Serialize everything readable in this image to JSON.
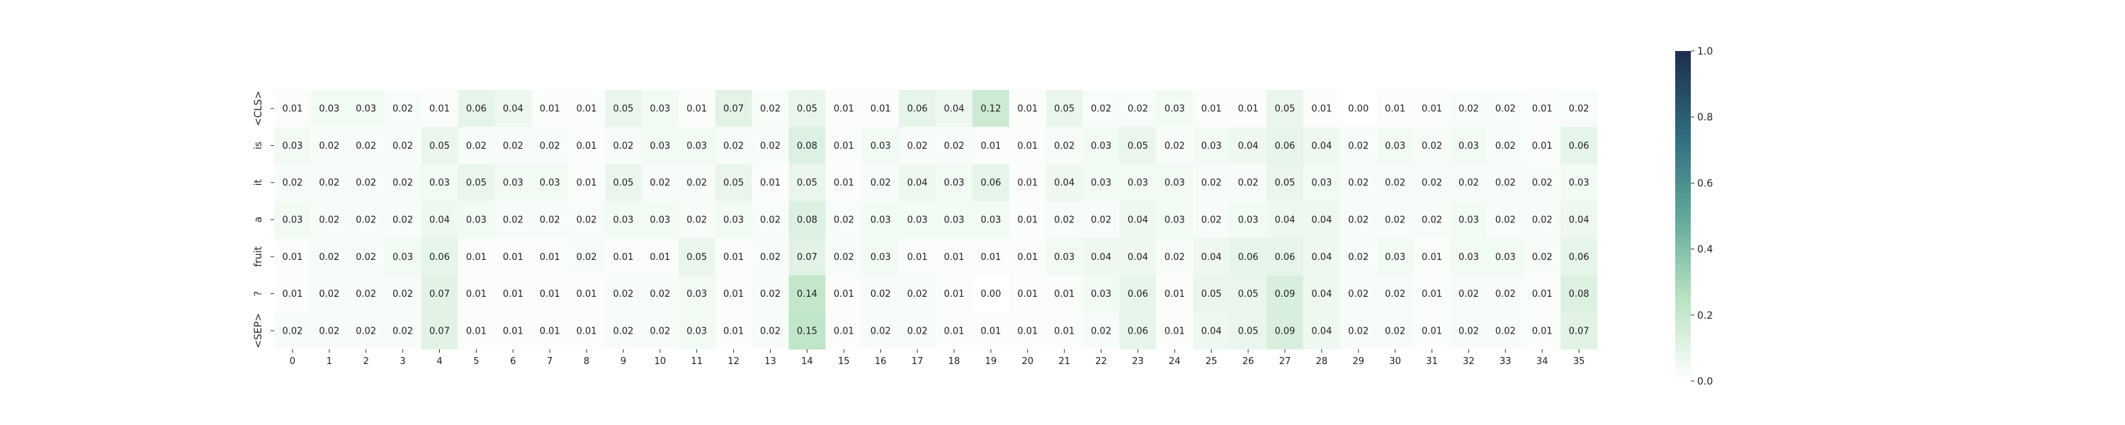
{
  "chart_data": {
    "type": "heatmap",
    "title": "",
    "xlabel": "",
    "ylabel": "",
    "x_categories": [
      "0",
      "1",
      "2",
      "3",
      "4",
      "5",
      "6",
      "7",
      "8",
      "9",
      "10",
      "11",
      "12",
      "13",
      "14",
      "15",
      "16",
      "17",
      "18",
      "19",
      "20",
      "21",
      "22",
      "23",
      "24",
      "25",
      "26",
      "27",
      "28",
      "29",
      "30",
      "31",
      "32",
      "33",
      "34",
      "35"
    ],
    "y_categories": [
      "<CLS>",
      "is",
      "it",
      "a",
      "fruit",
      "?",
      "<SEP>"
    ],
    "values": [
      [
        0.01,
        0.03,
        0.03,
        0.02,
        0.01,
        0.06,
        0.04,
        0.01,
        0.01,
        0.05,
        0.03,
        0.01,
        0.07,
        0.02,
        0.05,
        0.01,
        0.01,
        0.06,
        0.04,
        0.12,
        0.01,
        0.05,
        0.02,
        0.02,
        0.03,
        0.01,
        0.01,
        0.05,
        0.01,
        0.0,
        0.01,
        0.01,
        0.02,
        0.02,
        0.01,
        0.02
      ],
      [
        0.03,
        0.02,
        0.02,
        0.02,
        0.05,
        0.02,
        0.02,
        0.02,
        0.01,
        0.02,
        0.03,
        0.03,
        0.02,
        0.02,
        0.08,
        0.01,
        0.03,
        0.02,
        0.02,
        0.01,
        0.01,
        0.02,
        0.03,
        0.05,
        0.02,
        0.03,
        0.04,
        0.06,
        0.04,
        0.02,
        0.03,
        0.02,
        0.03,
        0.02,
        0.01,
        0.06
      ],
      [
        0.02,
        0.02,
        0.02,
        0.02,
        0.03,
        0.05,
        0.03,
        0.03,
        0.01,
        0.05,
        0.02,
        0.02,
        0.05,
        0.01,
        0.05,
        0.01,
        0.02,
        0.04,
        0.03,
        0.06,
        0.01,
        0.04,
        0.03,
        0.03,
        0.03,
        0.02,
        0.02,
        0.05,
        0.03,
        0.02,
        0.02,
        0.02,
        0.02,
        0.02,
        0.02,
        0.03
      ],
      [
        0.03,
        0.02,
        0.02,
        0.02,
        0.04,
        0.03,
        0.02,
        0.02,
        0.02,
        0.03,
        0.03,
        0.02,
        0.03,
        0.02,
        0.08,
        0.02,
        0.03,
        0.03,
        0.03,
        0.03,
        0.01,
        0.02,
        0.02,
        0.04,
        0.03,
        0.02,
        0.03,
        0.04,
        0.04,
        0.02,
        0.02,
        0.02,
        0.03,
        0.02,
        0.02,
        0.04
      ],
      [
        0.01,
        0.02,
        0.02,
        0.03,
        0.06,
        0.01,
        0.01,
        0.01,
        0.02,
        0.01,
        0.01,
        0.05,
        0.01,
        0.02,
        0.07,
        0.02,
        0.03,
        0.01,
        0.01,
        0.01,
        0.01,
        0.03,
        0.04,
        0.04,
        0.02,
        0.04,
        0.06,
        0.06,
        0.04,
        0.02,
        0.03,
        0.01,
        0.03,
        0.03,
        0.02,
        0.06
      ],
      [
        0.01,
        0.02,
        0.02,
        0.02,
        0.07,
        0.01,
        0.01,
        0.01,
        0.01,
        0.02,
        0.02,
        0.03,
        0.01,
        0.02,
        0.14,
        0.01,
        0.02,
        0.02,
        0.01,
        0.0,
        0.01,
        0.01,
        0.03,
        0.06,
        0.01,
        0.05,
        0.05,
        0.09,
        0.04,
        0.02,
        0.02,
        0.01,
        0.02,
        0.02,
        0.01,
        0.08
      ],
      [
        0.02,
        0.02,
        0.02,
        0.02,
        0.07,
        0.01,
        0.01,
        0.01,
        0.01,
        0.02,
        0.02,
        0.03,
        0.01,
        0.02,
        0.15,
        0.01,
        0.02,
        0.02,
        0.01,
        0.01,
        0.01,
        0.01,
        0.02,
        0.06,
        0.01,
        0.04,
        0.05,
        0.09,
        0.04,
        0.02,
        0.02,
        0.01,
        0.02,
        0.02,
        0.01,
        0.07
      ]
    ],
    "value_format": "2 decimals",
    "vmin": 0.0,
    "vmax": 1.0,
    "colormap": "white-to-green-to-dark-navy",
    "colormap_stops": [
      "#ffffff",
      "#b9e2c2",
      "#5fa89a",
      "#2e6a7f",
      "#1e2d4d"
    ],
    "colorbar": {
      "ticks": [
        "0.0",
        "0.2",
        "0.4",
        "0.6",
        "0.8",
        "1.0"
      ],
      "placement": "right"
    },
    "grid": false,
    "legend": "colorbar"
  }
}
